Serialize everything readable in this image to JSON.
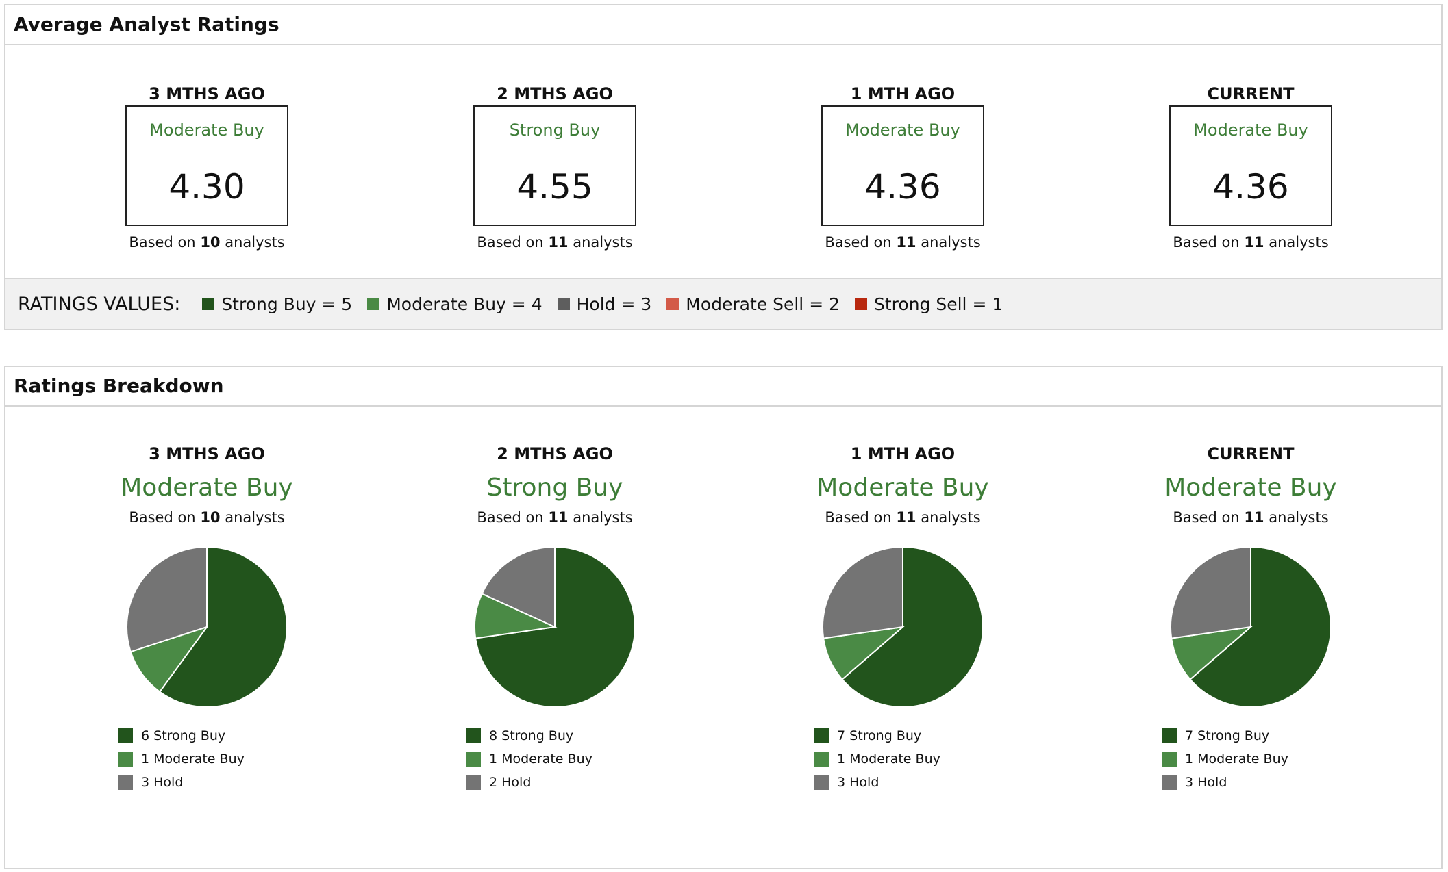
{
  "colors": {
    "strong_buy": "#22541c",
    "moderate_buy": "#4a8a45",
    "hold": "#747474",
    "moderate_sell": "#d35a48",
    "strong_sell": "#b8280f",
    "accent_text": "#3d7d37"
  },
  "avg_ratings": {
    "title": "Average Analyst Ratings",
    "columns": [
      {
        "period": "3 MTHS AGO",
        "rating": "Moderate Buy",
        "score": "4.30",
        "based_prefix": "Based on",
        "analysts": "10",
        "based_suffix": "analysts"
      },
      {
        "period": "2 MTHS AGO",
        "rating": "Strong Buy",
        "score": "4.55",
        "based_prefix": "Based on",
        "analysts": "11",
        "based_suffix": "analysts"
      },
      {
        "period": "1 MTH AGO",
        "rating": "Moderate Buy",
        "score": "4.36",
        "based_prefix": "Based on",
        "analysts": "11",
        "based_suffix": "analysts"
      },
      {
        "period": "CURRENT",
        "rating": "Moderate Buy",
        "score": "4.36",
        "based_prefix": "Based on",
        "analysts": "11",
        "based_suffix": "analysts"
      }
    ],
    "ratings_values": {
      "label": "RATINGS VALUES:",
      "items": [
        {
          "label": "Strong Buy = 5",
          "color": "#22541c"
        },
        {
          "label": "Moderate Buy = 4",
          "color": "#4a8a45"
        },
        {
          "label": "Hold = 3",
          "color": "#5e5e5e"
        },
        {
          "label": "Moderate Sell = 2",
          "color": "#d35a48"
        },
        {
          "label": "Strong Sell = 1",
          "color": "#b8280f"
        }
      ]
    }
  },
  "breakdown": {
    "title": "Ratings Breakdown",
    "columns": [
      {
        "period": "3 MTHS AGO",
        "rating": "Moderate Buy",
        "based_prefix": "Based on",
        "analysts": "10",
        "based_suffix": "analysts",
        "legend": [
          "6 Strong Buy",
          "1 Moderate Buy",
          "3 Hold"
        ]
      },
      {
        "period": "2 MTHS AGO",
        "rating": "Strong Buy",
        "based_prefix": "Based on",
        "analysts": "11",
        "based_suffix": "analysts",
        "legend": [
          "8 Strong Buy",
          "1 Moderate Buy",
          "2 Hold"
        ]
      },
      {
        "period": "1 MTH AGO",
        "rating": "Moderate Buy",
        "based_prefix": "Based on",
        "analysts": "11",
        "based_suffix": "analysts",
        "legend": [
          "7 Strong Buy",
          "1 Moderate Buy",
          "3 Hold"
        ]
      },
      {
        "period": "CURRENT",
        "rating": "Moderate Buy",
        "based_prefix": "Based on",
        "analysts": "11",
        "based_suffix": "analysts",
        "legend": [
          "7 Strong Buy",
          "1 Moderate Buy",
          "3 Hold"
        ]
      }
    ]
  },
  "chart_data": [
    {
      "type": "pie",
      "title": "3 MTHS AGO",
      "categories": [
        "Strong Buy",
        "Moderate Buy",
        "Hold"
      ],
      "values": [
        6,
        1,
        3
      ]
    },
    {
      "type": "pie",
      "title": "2 MTHS AGO",
      "categories": [
        "Strong Buy",
        "Moderate Buy",
        "Hold"
      ],
      "values": [
        8,
        1,
        2
      ]
    },
    {
      "type": "pie",
      "title": "1 MTH AGO",
      "categories": [
        "Strong Buy",
        "Moderate Buy",
        "Hold"
      ],
      "values": [
        7,
        1,
        3
      ]
    },
    {
      "type": "pie",
      "title": "CURRENT",
      "categories": [
        "Strong Buy",
        "Moderate Buy",
        "Hold"
      ],
      "values": [
        7,
        1,
        3
      ]
    }
  ]
}
